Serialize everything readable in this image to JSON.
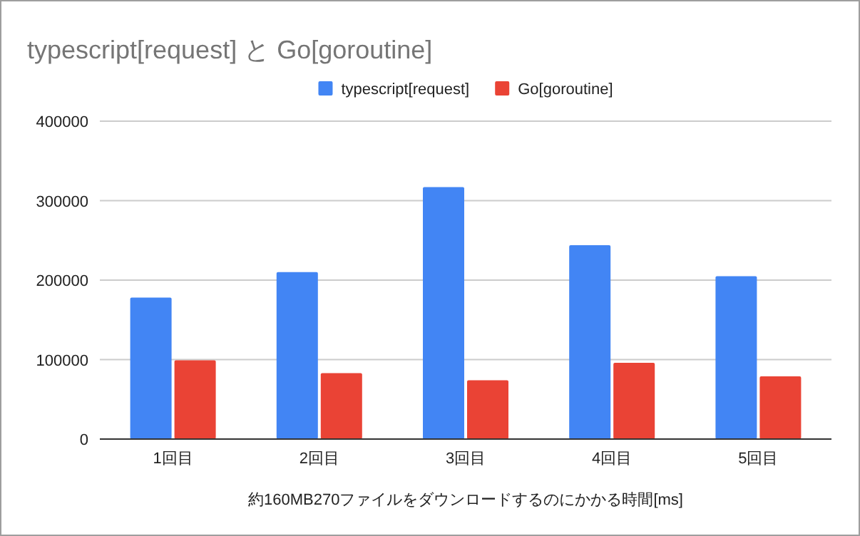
{
  "chart_data": {
    "type": "bar",
    "title": "typescript[request] と Go[goroutine]",
    "xlabel": "約160MB270ファイルをダウンロードするのにかかる時間[ms]",
    "categories": [
      "1回目",
      "2回目",
      "3回目",
      "4回目",
      "5回目"
    ],
    "series": [
      {
        "name": "typescript[request]",
        "color": "#4285f4",
        "values": [
          178000,
          210000,
          317000,
          244000,
          205000
        ]
      },
      {
        "name": "Go[goroutine]",
        "color": "#ea4335",
        "values": [
          99000,
          83000,
          74000,
          96000,
          79000
        ]
      }
    ],
    "ylim": [
      0,
      400000
    ],
    "yticks": [
      0,
      100000,
      200000,
      300000,
      400000
    ],
    "grid": "y",
    "legend": "top"
  }
}
